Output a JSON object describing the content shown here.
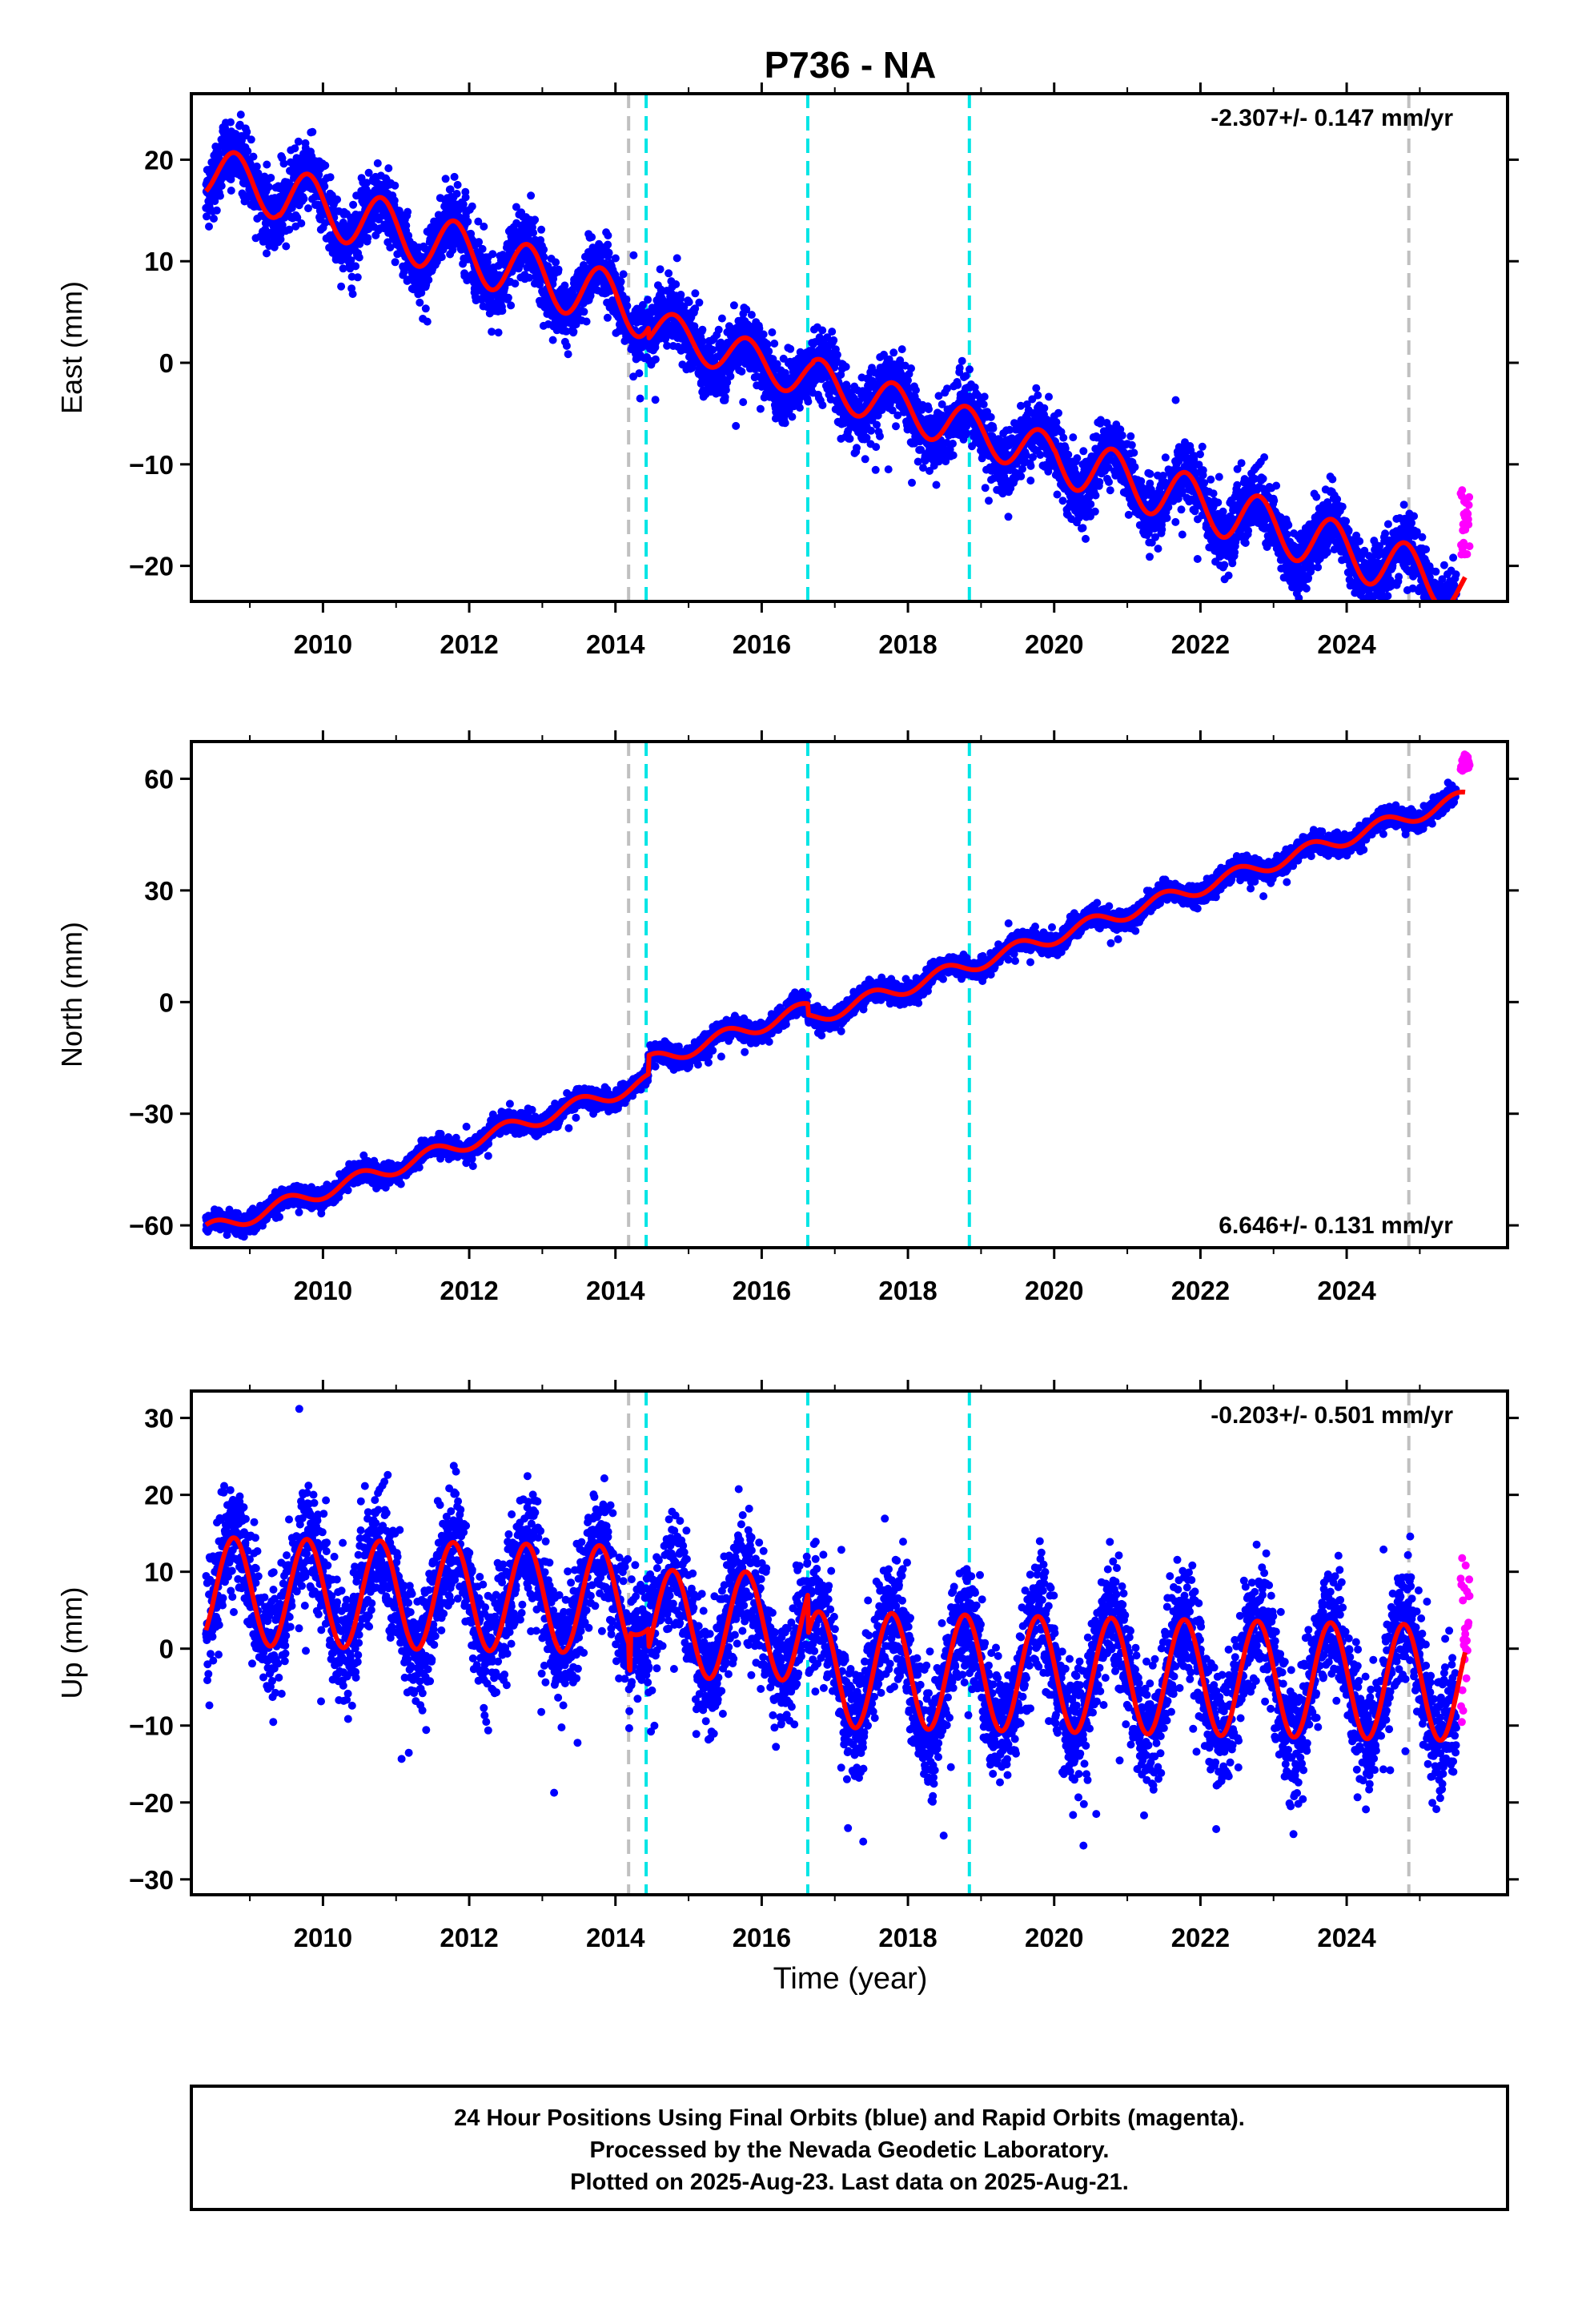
{
  "figure": {
    "title": "P736 - NA",
    "xlabel": "Time (year)",
    "caption": [
      "24 Hour Positions Using Final Orbits (blue) and Rapid Orbits (magenta).",
      "Processed by the Nevada Geodetic Laboratory.",
      "Plotted on 2025-Aug-23. Last data on 2025-Aug-21."
    ]
  },
  "colors": {
    "final_orbits": "#0000ff",
    "rapid_orbits": "#ff00ff",
    "model_fit": "#ff0000",
    "equipment_change": "#c0c0c0",
    "earthquake": "#00e5e5",
    "frame": "#000000"
  },
  "chart_data": [
    {
      "type": "scatter",
      "panel": "east",
      "ylabel": "East (mm)",
      "rate_text": "-2.307+/- 0.147 mm/yr",
      "xlim": [
        2008.2,
        2026.2
      ],
      "ylim": [
        -23.5,
        26.5
      ],
      "xticks": [
        2010,
        2012,
        2014,
        2016,
        2018,
        2020,
        2022,
        2024
      ],
      "yticks": [
        -20,
        -10,
        0,
        10,
        20
      ],
      "trend": {
        "t0": 2008.4,
        "v0": 19.0,
        "slope": -2.307
      },
      "seasonal": [
        {
          "start": 2008.4,
          "amp": 2.6
        },
        {
          "start": 2009.4,
          "amp": 2.8
        },
        {
          "start": 2014.45,
          "amp": 2.0
        },
        {
          "start": 2016.7,
          "amp": 2.2
        },
        {
          "start": 2020.0,
          "amp": 2.6
        }
      ],
      "phase_peak": 0.8,
      "offsets": [
        {
          "t": 2014.45,
          "dv": -1.5
        }
      ],
      "scatter_sd": 1.6,
      "t_start": 2008.4,
      "t_end": 2025.62,
      "rapid_start": 2025.5,
      "rapid_range": [
        -19,
        -12.5
      ],
      "vlines_gray": [
        2014.18,
        2024.85
      ],
      "vlines_cyan": [
        2014.42,
        2016.63,
        2018.84
      ]
    },
    {
      "type": "scatter",
      "panel": "north",
      "ylabel": "North (mm)",
      "rate_text": "6.646+/- 0.131 mm/yr",
      "xlim": [
        2008.2,
        2026.2
      ],
      "ylim": [
        -66,
        70
      ],
      "xticks": [
        2010,
        2012,
        2014,
        2016,
        2018,
        2020,
        2022,
        2024
      ],
      "yticks": [
        -60,
        -30,
        0,
        30,
        60
      ],
      "trend": {
        "t0": 2008.4,
        "v0": -61.5,
        "slope": 6.646
      },
      "seasonal": [
        {
          "start": 2008.4,
          "amp": 2.0
        }
      ],
      "phase_peak": 0.5,
      "offsets": [
        {
          "t": 2014.45,
          "dv": 5.0
        },
        {
          "t": 2016.63,
          "dv": -3.0
        }
      ],
      "scatter_sd": 1.3,
      "t_start": 2008.4,
      "t_end": 2025.62,
      "rapid_start": 2025.5,
      "rapid_range": [
        62,
        67
      ],
      "vlines_gray": [
        2014.18,
        2024.85
      ],
      "vlines_cyan": [
        2014.42,
        2016.63,
        2018.84
      ]
    },
    {
      "type": "scatter",
      "panel": "up",
      "ylabel": "Up (mm)",
      "rate_text": "-0.203+/- 0.501 mm/yr",
      "xlim": [
        2008.2,
        2026.2
      ],
      "ylim": [
        -32,
        33.5
      ],
      "xticks": [
        2010,
        2012,
        2014,
        2016,
        2018,
        2020,
        2022,
        2024
      ],
      "yticks": [
        -30,
        -20,
        -10,
        0,
        10,
        20,
        30
      ],
      "trend": {
        "t0": 2008.4,
        "v0": 7.5,
        "slope": -0.203
      },
      "seasonal": [
        {
          "start": 2008.4,
          "amp": 7.0
        },
        {
          "start": 2014.2,
          "amp": 1.5
        },
        {
          "start": 2014.45,
          "amp": 7.0
        },
        {
          "start": 2016.63,
          "amp": 7.5
        }
      ],
      "phase_peak": 0.78,
      "offsets": [
        {
          "t": 2014.18,
          "dv": -3.0
        },
        {
          "t": 2016.63,
          "dv": -5.5
        }
      ],
      "scatter_sd": 3.8,
      "t_start": 2008.4,
      "t_end": 2025.62,
      "rapid_start": 2025.5,
      "rapid_range": [
        -11,
        13
      ],
      "vlines_gray": [
        2014.18,
        2024.85
      ],
      "vlines_cyan": [
        2014.42,
        2016.63,
        2018.84
      ]
    }
  ]
}
